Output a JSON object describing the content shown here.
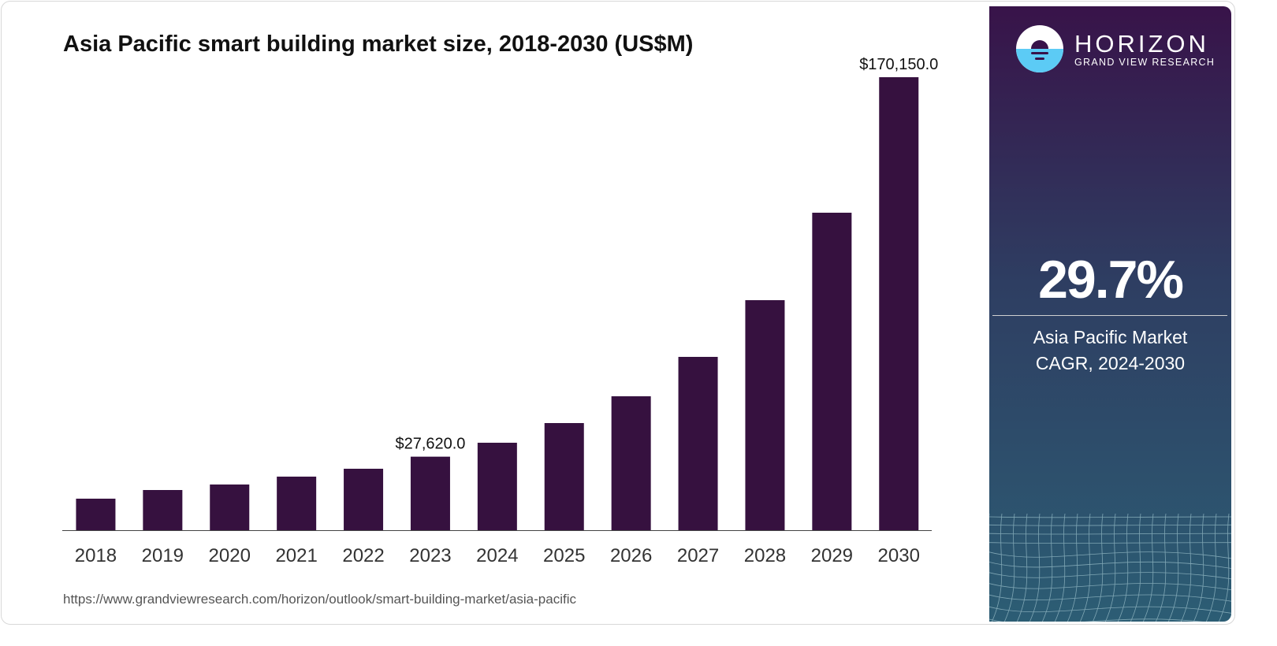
{
  "chart_data": {
    "type": "bar",
    "title": "Asia Pacific smart building market size, 2018-2030 (US$M)",
    "categories": [
      "2018",
      "2019",
      "2020",
      "2021",
      "2022",
      "2023",
      "2024",
      "2025",
      "2026",
      "2027",
      "2028",
      "2029",
      "2030"
    ],
    "values": [
      11840,
      15090,
      17160,
      20120,
      23080,
      27620,
      32850,
      40240,
      50300,
      65100,
      86400,
      119250,
      170150
    ],
    "data_labels": {
      "2023": "$27,620.0",
      "2030": "$170,150.0"
    },
    "xlabel": "",
    "ylabel": "",
    "ylim": [
      0,
      170150
    ],
    "grid": false,
    "bar_color": "#36113f"
  },
  "source": "https://www.grandviewresearch.com/horizon/outlook/smart-building-market/asia-pacific",
  "side": {
    "brand": "HORIZON",
    "brand_sub": "GRAND VIEW RESEARCH",
    "cagr": "29.7%",
    "caption_line1": "Asia Pacific Market",
    "caption_line2": "CAGR, 2024-2030"
  }
}
